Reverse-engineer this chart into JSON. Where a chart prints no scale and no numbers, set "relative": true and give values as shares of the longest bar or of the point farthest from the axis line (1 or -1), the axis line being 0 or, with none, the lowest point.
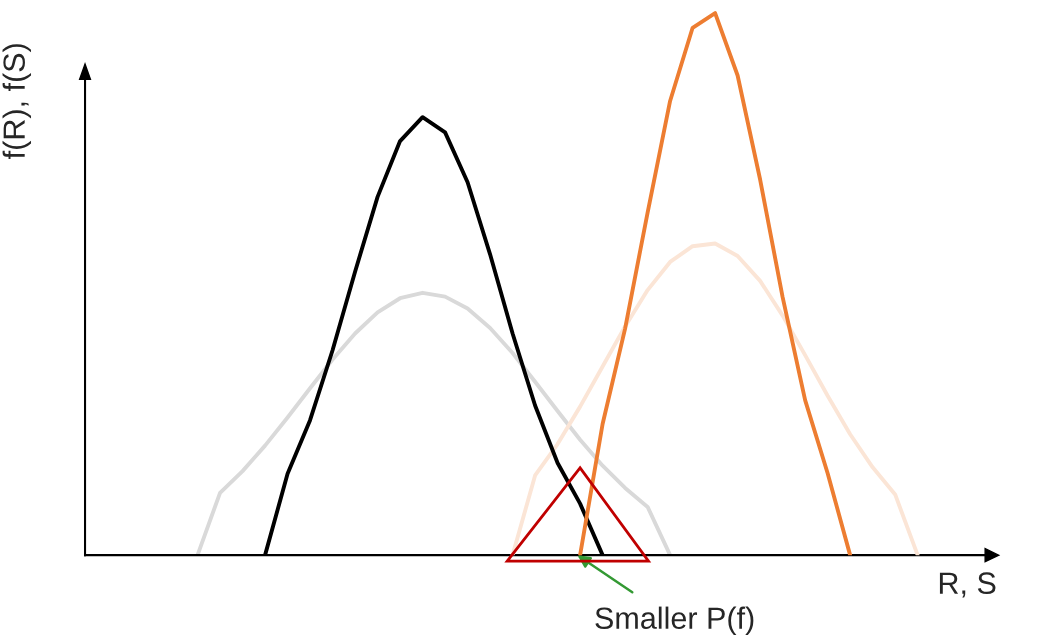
{
  "chart_data": {
    "type": "line",
    "relative": true,
    "xlabel": "R, S",
    "ylabel": "f(R), f(S)",
    "legend": false,
    "marker": "none",
    "line_style": "solid",
    "annotations": [
      "Smaller P(f)"
    ],
    "categories": [
      null,
      null,
      null,
      null,
      null,
      null,
      null,
      null,
      null,
      null,
      null,
      null,
      null,
      null,
      null,
      null,
      null,
      null,
      null,
      null,
      null,
      null,
      null,
      null,
      null,
      null,
      null,
      null,
      null,
      null,
      null,
      null,
      null,
      null,
      null,
      null,
      null,
      null,
      null,
      null,
      null
    ],
    "series": [
      {
        "color": "#d9d9d9",
        "values": [
          null,
          null,
          null,
          null,
          null,
          0,
          0.115,
          0.155,
          0.202,
          0.254,
          0.308,
          0.361,
          0.409,
          0.448,
          0.474,
          0.484,
          0.477,
          0.455,
          0.419,
          0.373,
          0.32,
          0.266,
          0.213,
          0.165,
          0.124,
          0.089,
          0,
          null,
          null,
          null,
          null,
          null,
          null,
          null,
          null,
          null,
          null,
          null,
          null,
          null,
          null
        ]
      },
      {
        "color": "#fbe5d6",
        "values": [
          null,
          null,
          null,
          null,
          null,
          null,
          null,
          null,
          null,
          null,
          null,
          null,
          null,
          null,
          null,
          null,
          null,
          null,
          null,
          0,
          0.147,
          0.205,
          0.274,
          0.348,
          0.422,
          0.489,
          0.541,
          0.57,
          0.575,
          0.552,
          0.506,
          0.442,
          0.369,
          0.294,
          0.223,
          0.162,
          0.112,
          0,
          null,
          null,
          null
        ]
      },
      {
        "color": "#000000",
        "values": [
          null,
          null,
          null,
          null,
          null,
          null,
          null,
          null,
          0,
          0.15,
          0.249,
          0.378,
          0.523,
          0.661,
          0.764,
          0.808,
          0.78,
          0.688,
          0.555,
          0.409,
          0.276,
          0.17,
          0.095,
          0,
          null,
          null,
          null,
          null,
          null,
          null,
          null,
          null,
          null,
          null,
          null,
          null,
          null,
          null,
          null,
          null,
          null
        ]
      },
      {
        "color": "#ed7d31",
        "values": [
          null,
          null,
          null,
          null,
          null,
          null,
          null,
          null,
          null,
          null,
          null,
          null,
          null,
          null,
          null,
          null,
          null,
          null,
          null,
          null,
          null,
          null,
          0,
          0.242,
          0.418,
          0.632,
          0.838,
          0.973,
          1,
          0.885,
          0.693,
          0.476,
          0.286,
          0.151,
          0,
          null,
          null,
          null,
          null,
          null,
          null
        ]
      }
    ]
  }
}
